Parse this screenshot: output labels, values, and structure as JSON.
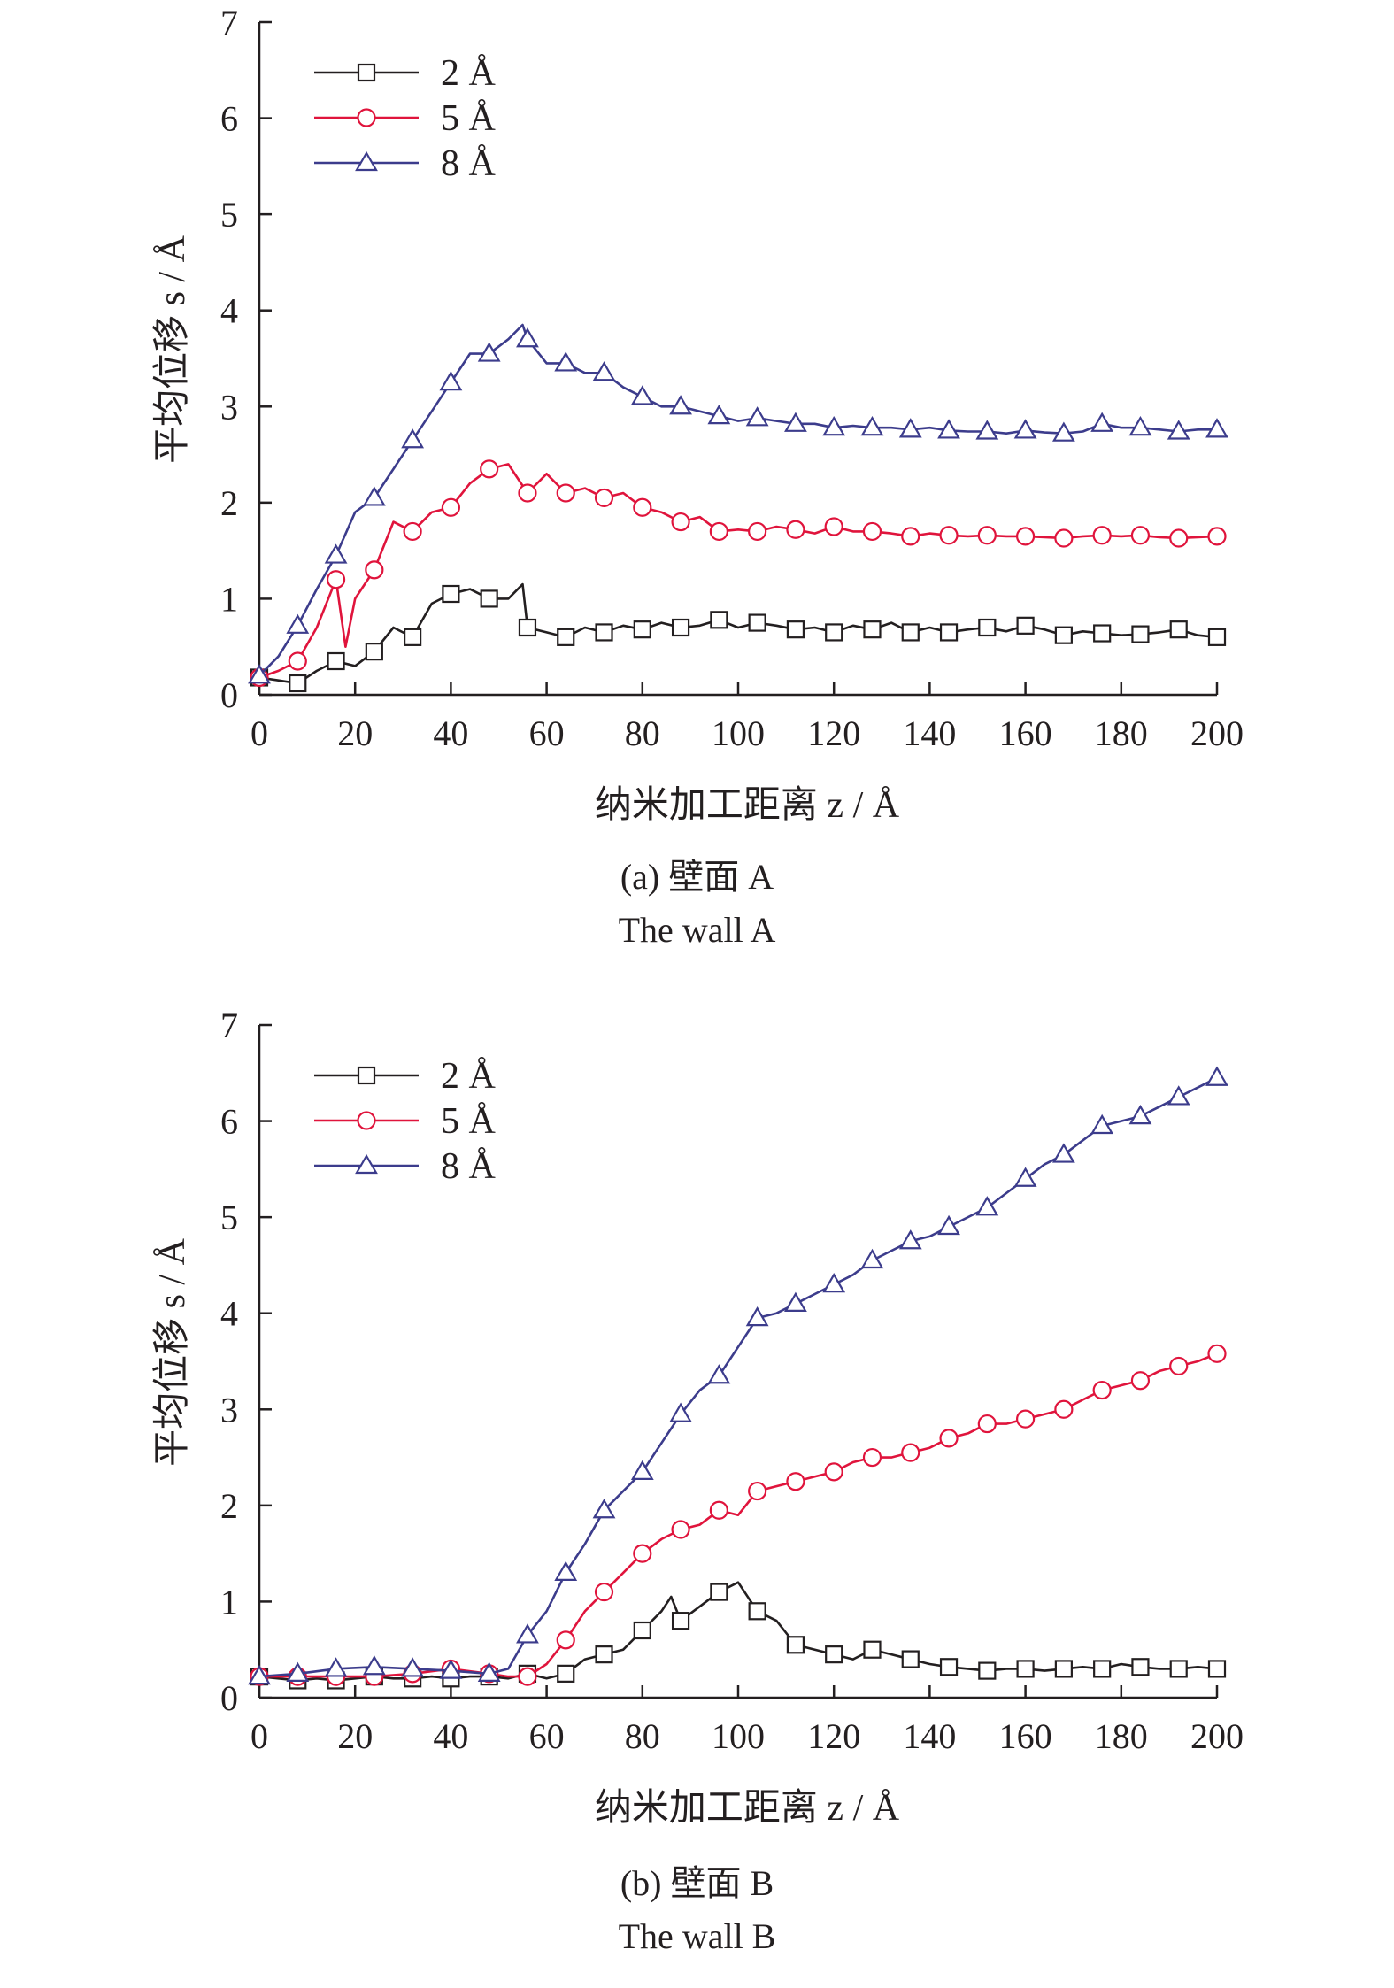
{
  "chart_data": [
    {
      "type": "line",
      "xlabel": "纳米加工距离 z / Å",
      "ylabel": "平均位移 s / Å",
      "xlim": [
        0,
        200
      ],
      "ylim": [
        0,
        7
      ],
      "xticks": [
        0,
        20,
        40,
        60,
        80,
        100,
        120,
        140,
        160,
        180,
        200
      ],
      "yticks": [
        0,
        1,
        2,
        3,
        4,
        5,
        6,
        7
      ],
      "legend_position": "top-left",
      "caption": "(a) 壁面 A",
      "caption_en": "The wall A",
      "series": [
        {
          "name": "2 Å",
          "color": "#231f20",
          "marker": "square",
          "x": [
            0,
            4,
            8,
            12,
            16,
            20,
            24,
            28,
            32,
            36,
            40,
            44,
            48,
            52,
            55,
            56,
            60,
            64,
            68,
            72,
            76,
            80,
            84,
            88,
            92,
            96,
            100,
            104,
            108,
            112,
            116,
            120,
            124,
            128,
            132,
            136,
            140,
            144,
            148,
            152,
            156,
            160,
            164,
            168,
            172,
            176,
            180,
            184,
            188,
            192,
            196,
            200
          ],
          "y": [
            0.18,
            0.15,
            0.12,
            0.25,
            0.35,
            0.3,
            0.45,
            0.7,
            0.6,
            0.95,
            1.05,
            1.1,
            1.0,
            1.0,
            1.15,
            0.7,
            0.65,
            0.6,
            0.7,
            0.65,
            0.72,
            0.68,
            0.75,
            0.7,
            0.72,
            0.78,
            0.7,
            0.75,
            0.72,
            0.68,
            0.7,
            0.65,
            0.72,
            0.68,
            0.75,
            0.65,
            0.7,
            0.65,
            0.68,
            0.7,
            0.66,
            0.72,
            0.68,
            0.62,
            0.66,
            0.64,
            0.62,
            0.63,
            0.65,
            0.68,
            0.62,
            0.6
          ],
          "marker_x": [
            0,
            8,
            16,
            24,
            32,
            40,
            48,
            56,
            64,
            72,
            80,
            88,
            96,
            104,
            112,
            120,
            128,
            136,
            144,
            152,
            160,
            168,
            176,
            184,
            192,
            200
          ]
        },
        {
          "name": "5 Å",
          "color": "#e0143c",
          "marker": "circle",
          "x": [
            0,
            4,
            8,
            12,
            16,
            18,
            20,
            24,
            28,
            32,
            36,
            40,
            44,
            48,
            52,
            56,
            60,
            64,
            68,
            72,
            76,
            80,
            84,
            88,
            92,
            96,
            100,
            104,
            108,
            112,
            116,
            120,
            124,
            128,
            132,
            136,
            140,
            144,
            148,
            152,
            156,
            160,
            164,
            168,
            172,
            176,
            180,
            184,
            188,
            192,
            196,
            200
          ],
          "y": [
            0.18,
            0.25,
            0.35,
            0.7,
            1.2,
            0.5,
            1.0,
            1.3,
            1.8,
            1.7,
            1.9,
            1.95,
            2.2,
            2.35,
            2.4,
            2.1,
            2.3,
            2.1,
            2.15,
            2.05,
            2.1,
            1.95,
            1.9,
            1.8,
            1.85,
            1.7,
            1.72,
            1.7,
            1.75,
            1.72,
            1.68,
            1.75,
            1.7,
            1.7,
            1.68,
            1.65,
            1.68,
            1.66,
            1.65,
            1.66,
            1.65,
            1.65,
            1.64,
            1.63,
            1.65,
            1.66,
            1.65,
            1.66,
            1.64,
            1.63,
            1.64,
            1.65
          ],
          "marker_x": [
            0,
            8,
            16,
            24,
            32,
            40,
            48,
            56,
            64,
            72,
            80,
            88,
            96,
            104,
            112,
            120,
            128,
            136,
            144,
            152,
            160,
            168,
            176,
            184,
            192,
            200
          ]
        },
        {
          "name": "8 Å",
          "color": "#3c3c8c",
          "marker": "triangle",
          "x": [
            0,
            4,
            8,
            12,
            16,
            20,
            24,
            28,
            32,
            36,
            40,
            44,
            48,
            52,
            55,
            56,
            60,
            64,
            68,
            72,
            76,
            80,
            84,
            88,
            92,
            96,
            100,
            104,
            108,
            112,
            116,
            120,
            124,
            128,
            132,
            136,
            140,
            144,
            148,
            152,
            156,
            160,
            164,
            168,
            172,
            176,
            180,
            184,
            188,
            192,
            196,
            200
          ],
          "y": [
            0.2,
            0.4,
            0.72,
            1.1,
            1.45,
            1.9,
            2.05,
            2.35,
            2.65,
            2.95,
            3.25,
            3.55,
            3.55,
            3.7,
            3.85,
            3.7,
            3.45,
            3.45,
            3.35,
            3.35,
            3.2,
            3.1,
            3.0,
            3.0,
            2.95,
            2.9,
            2.85,
            2.88,
            2.85,
            2.82,
            2.82,
            2.78,
            2.8,
            2.78,
            2.78,
            2.76,
            2.78,
            2.75,
            2.74,
            2.74,
            2.72,
            2.75,
            2.73,
            2.72,
            2.74,
            2.82,
            2.78,
            2.78,
            2.76,
            2.74,
            2.76,
            2.76
          ],
          "marker_x": [
            0,
            8,
            16,
            24,
            32,
            40,
            48,
            56,
            64,
            72,
            80,
            88,
            96,
            104,
            112,
            120,
            128,
            136,
            144,
            152,
            160,
            168,
            176,
            184,
            192,
            200
          ]
        }
      ]
    },
    {
      "type": "line",
      "xlabel": "纳米加工距离 z / Å",
      "ylabel": "平均位移 s / Å",
      "xlim": [
        0,
        200
      ],
      "ylim": [
        0,
        7
      ],
      "xticks": [
        0,
        20,
        40,
        60,
        80,
        100,
        120,
        140,
        160,
        180,
        200
      ],
      "yticks": [
        0,
        1,
        2,
        3,
        4,
        5,
        6,
        7
      ],
      "legend_position": "top-left",
      "caption": "(b) 壁面 B",
      "caption_en": "The wall B",
      "series": [
        {
          "name": "2 Å",
          "color": "#231f20",
          "marker": "square",
          "x": [
            0,
            4,
            8,
            12,
            16,
            20,
            24,
            28,
            32,
            36,
            40,
            44,
            48,
            52,
            56,
            60,
            64,
            68,
            72,
            76,
            80,
            84,
            86,
            88,
            92,
            96,
            100,
            104,
            108,
            112,
            116,
            120,
            124,
            128,
            132,
            136,
            140,
            144,
            148,
            152,
            156,
            160,
            164,
            168,
            172,
            176,
            180,
            184,
            188,
            192,
            196,
            200
          ],
          "y": [
            0.22,
            0.2,
            0.18,
            0.2,
            0.18,
            0.2,
            0.22,
            0.2,
            0.2,
            0.22,
            0.2,
            0.22,
            0.22,
            0.2,
            0.25,
            0.2,
            0.25,
            0.4,
            0.45,
            0.5,
            0.7,
            0.9,
            1.05,
            0.8,
            0.95,
            1.1,
            1.2,
            0.9,
            0.8,
            0.55,
            0.5,
            0.45,
            0.4,
            0.5,
            0.45,
            0.4,
            0.35,
            0.32,
            0.3,
            0.28,
            0.3,
            0.3,
            0.28,
            0.3,
            0.32,
            0.3,
            0.35,
            0.32,
            0.3,
            0.3,
            0.32,
            0.3
          ],
          "marker_x": [
            0,
            8,
            16,
            24,
            32,
            40,
            48,
            56,
            64,
            72,
            80,
            88,
            96,
            104,
            112,
            120,
            128,
            136,
            144,
            152,
            160,
            168,
            176,
            184,
            192,
            200
          ]
        },
        {
          "name": "5 Å",
          "color": "#e0143c",
          "marker": "circle",
          "x": [
            0,
            8,
            16,
            24,
            32,
            40,
            48,
            52,
            56,
            60,
            64,
            68,
            72,
            76,
            80,
            84,
            88,
            92,
            96,
            100,
            104,
            108,
            112,
            116,
            120,
            124,
            128,
            132,
            136,
            140,
            144,
            148,
            152,
            156,
            160,
            164,
            168,
            172,
            176,
            180,
            184,
            188,
            192,
            196,
            200
          ],
          "y": [
            0.22,
            0.22,
            0.22,
            0.22,
            0.25,
            0.3,
            0.25,
            0.22,
            0.22,
            0.35,
            0.6,
            0.9,
            1.1,
            1.3,
            1.5,
            1.65,
            1.75,
            1.8,
            1.95,
            1.9,
            2.15,
            2.2,
            2.25,
            2.3,
            2.35,
            2.45,
            2.5,
            2.5,
            2.55,
            2.6,
            2.7,
            2.75,
            2.85,
            2.85,
            2.9,
            2.95,
            3.0,
            3.1,
            3.2,
            3.25,
            3.3,
            3.4,
            3.45,
            3.5,
            3.58
          ],
          "marker_x": [
            0,
            8,
            16,
            24,
            32,
            40,
            48,
            56,
            64,
            72,
            80,
            88,
            96,
            104,
            112,
            120,
            128,
            136,
            144,
            152,
            160,
            168,
            176,
            184,
            192,
            200
          ]
        },
        {
          "name": "8 Å",
          "color": "#3c3c8c",
          "marker": "triangle",
          "x": [
            0,
            8,
            16,
            24,
            32,
            40,
            48,
            52,
            56,
            60,
            64,
            68,
            72,
            76,
            80,
            84,
            88,
            92,
            96,
            100,
            104,
            108,
            112,
            116,
            120,
            124,
            128,
            132,
            136,
            140,
            144,
            148,
            152,
            156,
            160,
            164,
            168,
            172,
            176,
            180,
            184,
            188,
            192,
            196,
            200
          ],
          "y": [
            0.22,
            0.25,
            0.3,
            0.32,
            0.3,
            0.28,
            0.25,
            0.3,
            0.65,
            0.9,
            1.3,
            1.6,
            1.95,
            2.15,
            2.35,
            2.65,
            2.95,
            3.2,
            3.35,
            3.65,
            3.95,
            4.0,
            4.1,
            4.2,
            4.3,
            4.4,
            4.55,
            4.65,
            4.75,
            4.8,
            4.9,
            5.0,
            5.1,
            5.25,
            5.4,
            5.55,
            5.65,
            5.8,
            5.95,
            6.0,
            6.05,
            6.15,
            6.25,
            6.35,
            6.45
          ],
          "marker_x": [
            0,
            8,
            16,
            24,
            32,
            40,
            48,
            56,
            64,
            72,
            80,
            88,
            96,
            104,
            112,
            120,
            128,
            136,
            144,
            152,
            160,
            168,
            176,
            184,
            192,
            200
          ]
        }
      ]
    }
  ]
}
